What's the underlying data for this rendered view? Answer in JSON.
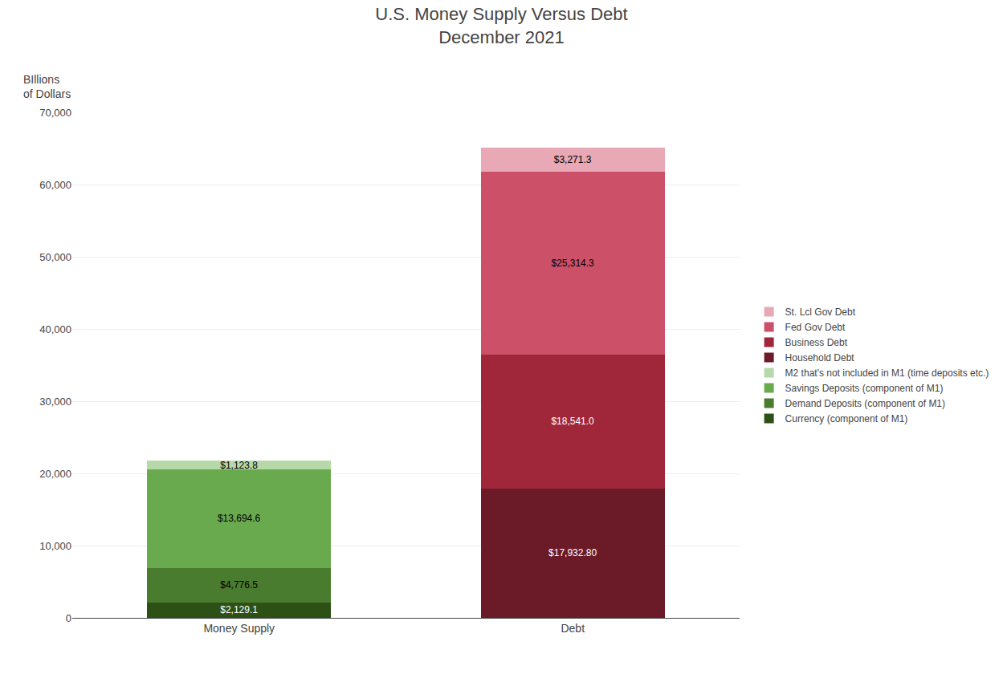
{
  "chart_data": {
    "type": "bar",
    "stacked": true,
    "title": "U.S. Money Supply Versus Debt\nDecember 2021",
    "ylabel": "BIllions\nof Dollars",
    "categories": [
      "Money Supply",
      "Debt"
    ],
    "series": [
      {
        "name": "Currency (component of M1)",
        "color": "#2d5016",
        "values": [
          2129.1,
          null
        ],
        "value_labels": [
          "$2,129.1",
          null
        ]
      },
      {
        "name": "Demand Deposits (component of M1)",
        "color": "#4a7c2f",
        "values": [
          4776.5,
          null
        ],
        "value_labels": [
          "$4,776.5",
          null
        ]
      },
      {
        "name": "Savings Deposits (component of M1)",
        "color": "#6aaa4e",
        "values": [
          13694.6,
          null
        ],
        "value_labels": [
          "$13,694.6",
          null
        ]
      },
      {
        "name": "M2 that's not included in M1 (time deposits etc.)",
        "color": "#b5d9a8",
        "values": [
          1123.8,
          null
        ],
        "value_labels": [
          "$1,123.8",
          null
        ]
      },
      {
        "name": "Household Debt",
        "color": "#6b1a27",
        "values": [
          null,
          17932.8
        ],
        "value_labels": [
          null,
          "$17,932.80"
        ]
      },
      {
        "name": "Business Debt",
        "color": "#a0273a",
        "values": [
          null,
          18541.0
        ],
        "value_labels": [
          null,
          "$18,541.0"
        ]
      },
      {
        "name": "Fed Gov Debt",
        "color": "#cc5068",
        "values": [
          null,
          25314.3
        ],
        "value_labels": [
          null,
          "$25,314.3"
        ]
      },
      {
        "name": "St. Lcl Gov Debt",
        "color": "#e8a8b5",
        "values": [
          null,
          3271.3
        ],
        "value_labels": [
          null,
          "$3,271.3"
        ]
      }
    ],
    "ylim": [
      0,
      70000
    ],
    "yticks": [
      0,
      {
        "value": 10000,
        "label": "10,000"
      },
      {
        "value": 20000,
        "label": "20,000"
      },
      {
        "value": 30000,
        "label": "30,000"
      },
      {
        "value": 40000,
        "label": "40,000"
      },
      {
        "value": 50000,
        "label": "50,000"
      },
      {
        "value": 60000,
        "label": "60,000"
      },
      {
        "value": 70000,
        "label": "70,000"
      }
    ],
    "grid": true,
    "legend": "right",
    "data_labels": true
  }
}
